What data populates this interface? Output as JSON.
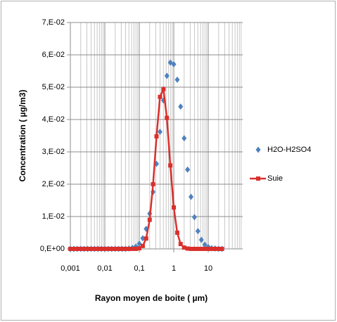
{
  "chart_data": {
    "type": "scatter",
    "log_x": true,
    "grid": true,
    "minor_grid": true,
    "legend": "right",
    "x_label": "Rayon moyen de boite ( µm)",
    "y_label": "Concentration ( µg/m3)",
    "xlim": [
      0.001,
      100
    ],
    "xticks": [
      {
        "value": 0.001,
        "label": "0,001"
      },
      {
        "value": 0.01,
        "label": "0,01"
      },
      {
        "value": 0.1,
        "label": "0,1"
      },
      1,
      10
    ],
    "ylim": [
      0,
      0.07
    ],
    "yticks": [
      {
        "value": 0,
        "label": "0,E+00"
      },
      {
        "value": 0.01,
        "label": "1,E-02"
      },
      {
        "value": 0.02,
        "label": "2,E-02"
      },
      {
        "value": 0.03,
        "label": "3,E-02"
      },
      {
        "value": 0.04,
        "label": "4,E-02"
      },
      {
        "value": 0.05,
        "label": "5,E-02"
      },
      {
        "value": 0.06,
        "label": "6,E-02"
      },
      {
        "value": 0.07,
        "label": "7,E-02"
      }
    ],
    "x": [
      0.001,
      0.00126,
      0.00158,
      0.002,
      0.00251,
      0.00316,
      0.00398,
      0.00501,
      0.00631,
      0.00794,
      0.01,
      0.0126,
      0.0158,
      0.02,
      0.0251,
      0.0316,
      0.0398,
      0.0501,
      0.0631,
      0.0794,
      0.1,
      0.126,
      0.158,
      0.2,
      0.251,
      0.316,
      0.398,
      0.501,
      0.631,
      0.794,
      1,
      1.26,
      1.58,
      2,
      2.51,
      3.16,
      3.98,
      5.01,
      6.31,
      7.94,
      10,
      12.6,
      15.8,
      20,
      25.1
    ],
    "series": [
      {
        "name": "H2O-H2SO4",
        "color": "#4f81bd",
        "marker": "diamond",
        "line": false,
        "values": [
          0,
          0,
          0,
          0,
          0,
          0,
          0,
          0,
          0,
          0,
          0,
          0,
          0,
          0,
          0,
          0,
          0,
          0.0001,
          0.0003,
          0.0007,
          0.0016,
          0.0033,
          0.0062,
          0.0109,
          0.0176,
          0.0263,
          0.0362,
          0.0459,
          0.0535,
          0.0576,
          0.0571,
          0.0523,
          0.044,
          0.0342,
          0.0245,
          0.0161,
          0.0098,
          0.0055,
          0.0028,
          0.0013,
          0.0006,
          0.0002,
          0.0001,
          0,
          0
        ]
      },
      {
        "name": "Suie",
        "color": "#d9302c",
        "marker": "square",
        "line": true,
        "values": [
          0,
          0,
          0,
          0,
          0,
          0,
          0,
          0,
          0,
          0,
          0,
          0,
          0,
          0,
          0,
          0,
          0,
          0,
          0,
          0,
          0.0002,
          0.0009,
          0.0032,
          0.009,
          0.02,
          0.0348,
          0.047,
          0.0494,
          0.0405,
          0.0258,
          0.0128,
          0.005,
          0.0015,
          0.0004,
          0.0001,
          0,
          0,
          0,
          0,
          0,
          0,
          0,
          0,
          0,
          0
        ]
      }
    ]
  }
}
